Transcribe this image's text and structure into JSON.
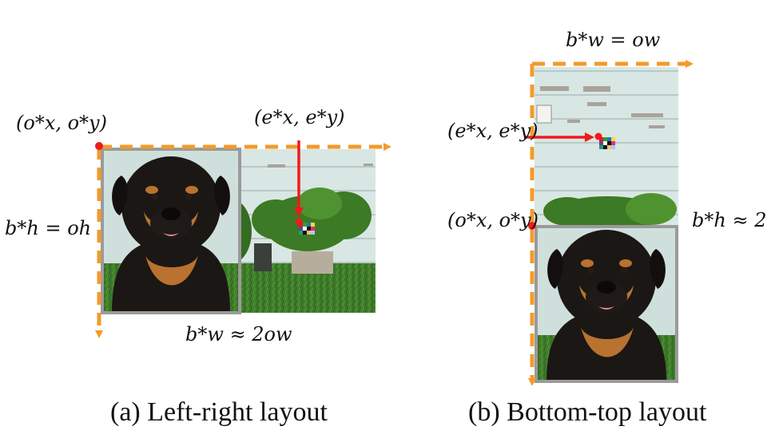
{
  "panel_a": {
    "caption": "(a) Left-right layout",
    "origin_label": "(o*x, o*y)",
    "anchor_label": "(e*x, e*y)",
    "height_label": "b*h = oh",
    "width_label": "b*w ≈ 2ow"
  },
  "panel_b": {
    "caption": "(b) Bottom-top layout",
    "width_label": "b*w = ow",
    "anchor_label": "(e*x, e*y)",
    "origin_label": "(o*x, o*y)",
    "height_label": "b*h ≈ 2"
  },
  "colors": {
    "orange_dash": "#f39a2b",
    "red_point": "#ef1b1b",
    "gray_border": "#9a9a9a",
    "siding": "#d8e6e3",
    "grass": "#3f7d2a",
    "dog_black": "#1b1715",
    "dog_tan": "#b9722f"
  }
}
